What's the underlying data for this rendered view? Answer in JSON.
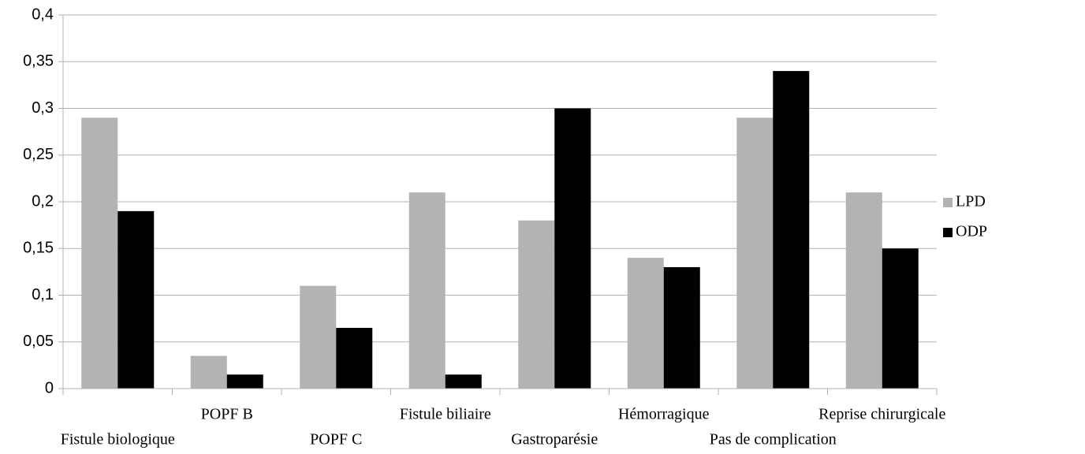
{
  "chart_data": {
    "type": "bar",
    "categories": [
      "Fistule biologique",
      "POPF B",
      "POPF C",
      "Fistule biliaire",
      "Gastroparésie",
      "Hémorragique",
      "Pas de complication",
      "Reprise chirurgicale"
    ],
    "series": [
      {
        "name": "LPD",
        "color": "#b3b3b3",
        "values": [
          0.29,
          0.035,
          0.11,
          0.21,
          0.18,
          0.14,
          0.29,
          0.21
        ]
      },
      {
        "name": "ODP",
        "color": "#000000",
        "values": [
          0.19,
          0.015,
          0.065,
          0.015,
          0.3,
          0.13,
          0.34,
          0.15
        ]
      }
    ],
    "ylim": [
      0,
      0.4
    ],
    "yticks": [
      0,
      {
        "value": 0.05,
        "label": "0,05"
      },
      {
        "value": 0.1,
        "label": "0,1"
      },
      {
        "value": 0.15,
        "label": "0,15"
      },
      {
        "value": 0.2,
        "label": "0,2"
      },
      {
        "value": 0.25,
        "label": "0,25"
      },
      {
        "value": 0.3,
        "label": "0,3"
      },
      {
        "value": 0.35,
        "label": "0,35"
      },
      {
        "value": 0.4,
        "label": "0,4"
      }
    ],
    "grid": true,
    "legend": "right"
  }
}
